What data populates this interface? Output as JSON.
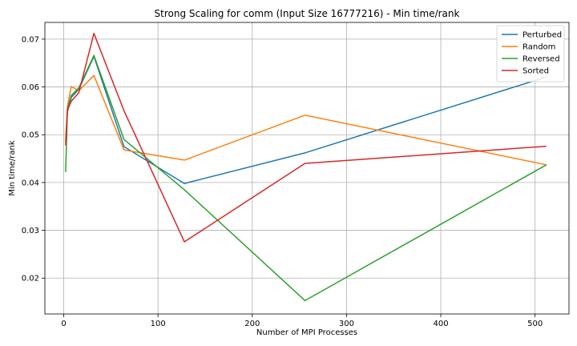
{
  "chart_data": {
    "type": "line",
    "title": "Strong Scaling for comm (Input Size 16777216) - Min time/rank",
    "xlabel": "Number of MPI Processes",
    "ylabel": "Min time/rank",
    "xlim": [
      -20,
      536
    ],
    "ylim": [
      0.0125,
      0.0735
    ],
    "xticks": [
      0,
      100,
      200,
      300,
      400,
      500
    ],
    "yticks": [
      0.02,
      0.03,
      0.04,
      0.05,
      0.06,
      0.07
    ],
    "ytick_labels": [
      "0.02",
      "0.03",
      "0.04",
      "0.05",
      "0.06",
      "0.07"
    ],
    "grid": true,
    "legend_position": "top-right",
    "x": [
      2,
      4,
      8,
      16,
      32,
      64,
      128,
      256,
      512
    ],
    "series": [
      {
        "name": "Perturbed",
        "color": "#1f77b4",
        "values": [
          0.0485,
          0.0548,
          0.0578,
          0.0595,
          0.0664,
          0.0475,
          0.0398,
          0.0462,
          0.0621
        ]
      },
      {
        "name": "Random",
        "color": "#ff7f0e",
        "values": [
          0.049,
          0.056,
          0.0601,
          0.0592,
          0.0624,
          0.0468,
          0.0447,
          0.0541,
          0.0437
        ]
      },
      {
        "name": "Reversed",
        "color": "#2ca02c",
        "values": [
          0.0422,
          0.0555,
          0.0582,
          0.0598,
          0.0666,
          0.049,
          0.0385,
          0.0153,
          0.0437
        ]
      },
      {
        "name": "Sorted",
        "color": "#d62728",
        "values": [
          0.0478,
          0.0552,
          0.057,
          0.0588,
          0.0712,
          0.055,
          0.0276,
          0.044,
          0.0476
        ]
      }
    ]
  }
}
